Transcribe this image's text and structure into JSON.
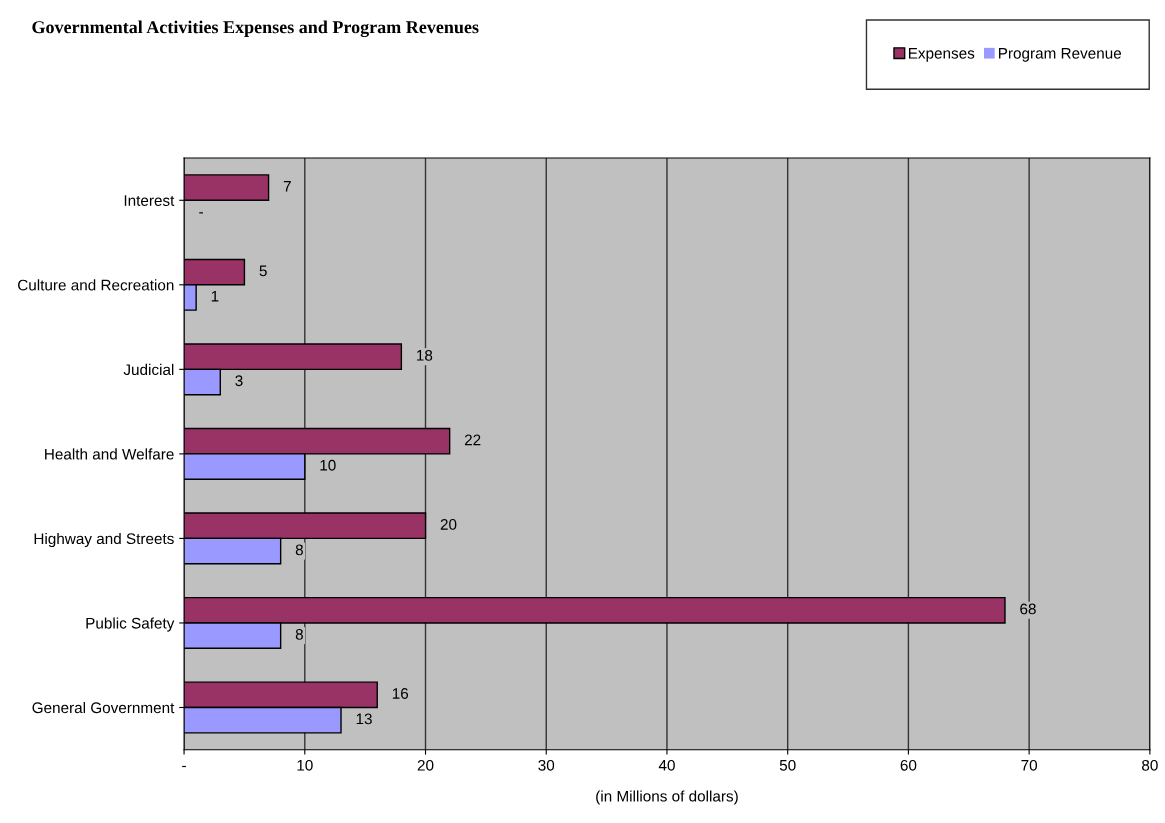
{
  "chart_data": {
    "type": "bar",
    "orientation": "horizontal",
    "title": "Governmental Activities Expenses and Program Revenues",
    "xlabel": "(in Millions of dollars)",
    "categories": [
      "Interest",
      "Culture and Recreation",
      "Judicial",
      "Health and Welfare",
      "Highway and Streets",
      "Public Safety",
      "General Government"
    ],
    "series": [
      {
        "name": "Expenses",
        "color": "#993366",
        "values": [
          7,
          5,
          18,
          22,
          20,
          68,
          16
        ],
        "value_labels": [
          "7",
          "5",
          "18",
          "22",
          "20",
          "68",
          "16"
        ]
      },
      {
        "name": "Program Revenue",
        "color": "#9999ff",
        "values": [
          0,
          1,
          3,
          10,
          8,
          8,
          13
        ],
        "value_labels": [
          "-",
          "1",
          "3",
          "10",
          "8",
          "8",
          "13"
        ]
      }
    ],
    "xlim": [
      0,
      80
    ],
    "xticks": [
      {
        "value": 0,
        "label": "-"
      },
      10,
      20,
      30,
      40,
      50,
      60,
      70,
      80
    ],
    "grid": "x",
    "legend": "top right"
  }
}
